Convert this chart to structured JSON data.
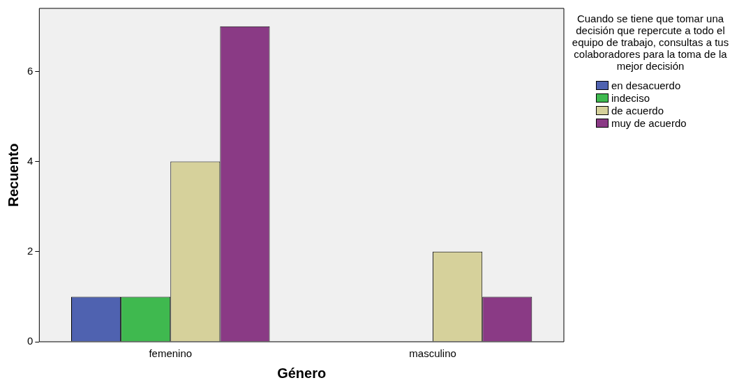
{
  "chart_data": {
    "type": "bar",
    "xlabel": "Género",
    "ylabel": "Recuento",
    "legend_title": "Cuando se tiene que tomar una decisión que repercute a todo el equipo de trabajo, consultas a tus colaboradores para la toma de la mejor decisión",
    "categories": [
      "femenino",
      "masculino"
    ],
    "series": [
      {
        "name": "en desacuerdo",
        "color": "#4f62b0",
        "values": [
          1,
          null
        ]
      },
      {
        "name": "indeciso",
        "color": "#3fb94f",
        "values": [
          1,
          null
        ]
      },
      {
        "name": "de acuerdo",
        "color": "#d6d19b",
        "values": [
          4,
          2
        ]
      },
      {
        "name": "muy de acuerdo",
        "color": "#8a3a85",
        "values": [
          7,
          1
        ]
      }
    ],
    "ylim": [
      0,
      7.4
    ],
    "yticks": [
      0,
      2,
      4,
      6
    ],
    "grid": false,
    "legend": "right"
  }
}
